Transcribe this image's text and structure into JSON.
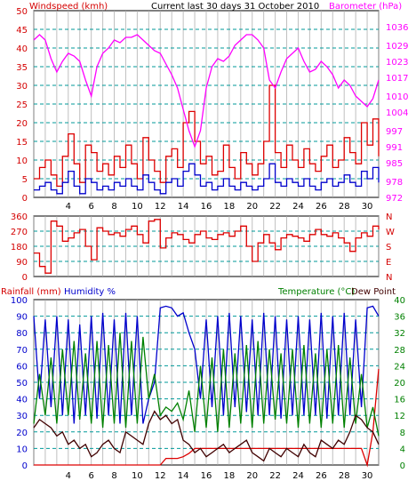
{
  "header": {
    "left": "Windspeed (kmh)",
    "center": "Current last 30 days 31 October 2010",
    "right": "Barometer (hPa)"
  },
  "lower_header": {
    "rainfall": "Rainfall (mm)",
    "humidity": "Humidity %",
    "temperature": "Temperature (°C)",
    "dewpoint": "Dew Point"
  },
  "colors": {
    "wind_axis": "#d40000",
    "baro": "#ff00ff",
    "temp_axis": "#008000",
    "humidity": "#0000cc",
    "dewpoint": "#400000",
    "grid_v": "#aaaaaa",
    "grid_h": "#009999"
  },
  "chart_data": [
    {
      "type": "line",
      "title": "Current last 30 days 31 October 2010",
      "x_ticks": [
        4,
        6,
        8,
        10,
        12,
        14,
        16,
        18,
        20,
        22,
        24,
        26,
        28,
        30
      ],
      "xlim": [
        1,
        31
      ],
      "left_axis": {
        "label": "Windspeed (kmh)",
        "ylim": [
          0,
          50
        ],
        "ticks": [
          0,
          5,
          10,
          15,
          20,
          25,
          30,
          35,
          40,
          45,
          50
        ]
      },
      "right_axis": {
        "label": "Barometer (hPa)",
        "ylim": [
          972,
          1042
        ],
        "ticks": [
          972,
          978,
          985,
          991,
          997,
          1004,
          1010,
          1017,
          1023,
          1029,
          1036
        ]
      },
      "series": [
        {
          "name": "Barometer (hPa)",
          "axis": "right",
          "x": [
            1,
            1.5,
            2,
            2.5,
            3,
            3.5,
            4,
            4.5,
            5,
            5.5,
            6,
            6.5,
            7,
            7.5,
            8,
            8.5,
            9,
            9.5,
            10,
            10.5,
            11,
            11.5,
            12,
            12.5,
            13,
            13.5,
            14,
            14.5,
            15,
            15.5,
            16,
            16.5,
            17,
            17.5,
            18,
            18.5,
            19,
            19.5,
            20,
            20.5,
            21,
            21.5,
            22,
            22.5,
            23,
            23.5,
            24,
            24.5,
            25,
            25.5,
            26,
            26.5,
            27,
            27.5,
            28,
            28.5,
            29,
            29.5,
            30,
            30.5,
            31
          ],
          "values": [
            1031,
            1033,
            1031,
            1024,
            1019,
            1023,
            1026,
            1025,
            1023,
            1016,
            1010,
            1021,
            1026,
            1028,
            1031,
            1030,
            1032,
            1032,
            1033,
            1031,
            1029,
            1027,
            1026,
            1022,
            1018,
            1013,
            1005,
            997,
            991,
            997,
            1013,
            1021,
            1024,
            1023,
            1025,
            1029,
            1031,
            1033,
            1033,
            1031,
            1028,
            1016,
            1013,
            1019,
            1024,
            1026,
            1028,
            1023,
            1019,
            1020,
            1023,
            1021,
            1018,
            1013,
            1016,
            1014,
            1010,
            1008,
            1006,
            1009,
            1016
          ]
        },
        {
          "name": "Wind gust (kmh)",
          "axis": "left",
          "x": [
            1,
            1.5,
            2,
            2.5,
            3,
            3.5,
            4,
            4.5,
            5,
            5.5,
            6,
            6.5,
            7,
            7.5,
            8,
            8.5,
            9,
            9.5,
            10,
            10.5,
            11,
            11.5,
            12,
            12.5,
            13,
            13.5,
            14,
            14.5,
            15,
            15.5,
            16,
            16.5,
            17,
            17.5,
            18,
            18.5,
            19,
            19.5,
            20,
            20.5,
            21,
            21.5,
            22,
            22.5,
            23,
            23.5,
            24,
            24.5,
            25,
            25.5,
            26,
            26.5,
            27,
            27.5,
            28,
            28.5,
            29,
            29.5,
            30,
            30.5,
            31
          ],
          "values": [
            5,
            8,
            10,
            6,
            3,
            11,
            17,
            9,
            4,
            14,
            12,
            7,
            9,
            6,
            11,
            8,
            14,
            9,
            5,
            16,
            10,
            7,
            4,
            11,
            13,
            8,
            20,
            23,
            15,
            9,
            11,
            6,
            7,
            14,
            8,
            5,
            12,
            9,
            6,
            9,
            15,
            30,
            12,
            8,
            14,
            10,
            8,
            13,
            9,
            7,
            11,
            14,
            8,
            10,
            16,
            12,
            9,
            20,
            14,
            21,
            11
          ]
        },
        {
          "name": "Average wind (kmh)",
          "axis": "left",
          "x": [
            1,
            1.5,
            2,
            2.5,
            3,
            3.5,
            4,
            4.5,
            5,
            5.5,
            6,
            6.5,
            7,
            7.5,
            8,
            8.5,
            9,
            9.5,
            10,
            10.5,
            11,
            11.5,
            12,
            12.5,
            13,
            13.5,
            14,
            14.5,
            15,
            15.5,
            16,
            16.5,
            17,
            17.5,
            18,
            18.5,
            19,
            19.5,
            20,
            20.5,
            21,
            21.5,
            22,
            22.5,
            23,
            23.5,
            24,
            24.5,
            25,
            25.5,
            26,
            26.5,
            27,
            27.5,
            28,
            28.5,
            29,
            29.5,
            30,
            30.5,
            31
          ],
          "values": [
            2,
            3,
            4,
            2,
            1,
            4,
            7,
            3,
            1,
            5,
            4,
            2,
            3,
            2,
            4,
            3,
            5,
            3,
            2,
            6,
            4,
            2,
            1,
            4,
            5,
            3,
            7,
            9,
            6,
            3,
            4,
            2,
            3,
            5,
            3,
            2,
            4,
            3,
            2,
            3,
            5,
            9,
            4,
            3,
            5,
            4,
            3,
            5,
            3,
            2,
            4,
            5,
            3,
            4,
            6,
            4,
            3,
            7,
            5,
            8,
            4
          ]
        }
      ]
    },
    {
      "type": "line",
      "left_axis": {
        "ylim": [
          0,
          360
        ],
        "ticks": [
          0,
          90,
          180,
          270,
          360
        ]
      },
      "right_axis_labels": [
        "N",
        "E",
        "S",
        "W",
        "N"
      ],
      "xlim": [
        1,
        31
      ],
      "series": [
        {
          "name": "Wind direction (°)",
          "x": [
            1,
            1.5,
            2,
            2.5,
            3,
            3.5,
            4,
            4.5,
            5,
            5.5,
            6,
            6.5,
            7,
            7.5,
            8,
            8.5,
            9,
            9.5,
            10,
            10.5,
            11,
            11.5,
            12,
            12.5,
            13,
            13.5,
            14,
            14.5,
            15,
            15.5,
            16,
            16.5,
            17,
            17.5,
            18,
            18.5,
            19,
            19.5,
            20,
            20.5,
            21,
            21.5,
            22,
            22.5,
            23,
            23.5,
            24,
            24.5,
            25,
            25.5,
            26,
            26.5,
            27,
            27.5,
            28,
            28.5,
            29,
            29.5,
            30,
            30.5,
            31
          ],
          "values": [
            140,
            60,
            20,
            330,
            300,
            210,
            230,
            260,
            280,
            180,
            100,
            290,
            270,
            250,
            260,
            240,
            280,
            300,
            250,
            200,
            330,
            340,
            170,
            230,
            260,
            250,
            220,
            200,
            250,
            270,
            230,
            220,
            250,
            260,
            240,
            270,
            300,
            180,
            90,
            200,
            250,
            200,
            160,
            230,
            250,
            240,
            230,
            210,
            250,
            280,
            250,
            240,
            260,
            230,
            200,
            150,
            230,
            260,
            240,
            300,
            280
          ]
        }
      ]
    },
    {
      "type": "line",
      "xlim": [
        1,
        31
      ],
      "left_axis": {
        "label": "Rainfall (mm) / Humidity %",
        "ylim": [
          0,
          100
        ],
        "ticks": [
          0,
          10,
          20,
          30,
          40,
          50,
          60,
          70,
          80,
          90,
          100
        ]
      },
      "right_axis": {
        "label": "Temperature (°C)",
        "ylim": [
          0,
          40
        ],
        "ticks": [
          0,
          4,
          8,
          12,
          16,
          20,
          24,
          28,
          32,
          36,
          40
        ]
      },
      "series": [
        {
          "name": "Humidity %",
          "axis": "left",
          "x": [
            1,
            1.5,
            2,
            2.5,
            3,
            3.5,
            4,
            4.5,
            5,
            5.5,
            6,
            6.5,
            7,
            7.5,
            8,
            8.5,
            9,
            9.5,
            10,
            10.5,
            11,
            11.5,
            12,
            12.5,
            13,
            13.5,
            14,
            14.5,
            15,
            15.5,
            16,
            16.5,
            17,
            17.5,
            18,
            18.5,
            19,
            19.5,
            20,
            20.5,
            21,
            21.5,
            22,
            22.5,
            23,
            23.5,
            24,
            24.5,
            25,
            25.5,
            26,
            26.5,
            27,
            27.5,
            28,
            28.5,
            29,
            29.5,
            30,
            30.5,
            31
          ],
          "values": [
            90,
            40,
            88,
            35,
            90,
            30,
            88,
            25,
            85,
            30,
            90,
            28,
            92,
            30,
            88,
            25,
            92,
            30,
            90,
            25,
            40,
            50,
            95,
            96,
            95,
            90,
            92,
            80,
            70,
            40,
            88,
            35,
            90,
            30,
            92,
            35,
            90,
            32,
            88,
            30,
            92,
            30,
            90,
            28,
            88,
            30,
            90,
            30,
            88,
            30,
            92,
            28,
            90,
            30,
            92,
            30,
            88,
            35,
            95,
            96,
            90
          ]
        },
        {
          "name": "Temperature (°C)",
          "axis": "right",
          "x": [
            1,
            1.5,
            2,
            2.5,
            3,
            3.5,
            4,
            4.5,
            5,
            5.5,
            6,
            6.5,
            7,
            7.5,
            8,
            8.5,
            9,
            9.5,
            10,
            10.5,
            11,
            11.5,
            12,
            12.5,
            13,
            13.5,
            14,
            14.5,
            15,
            15.5,
            16,
            16.5,
            17,
            17.5,
            18,
            18.5,
            19,
            19.5,
            20,
            20.5,
            21,
            21.5,
            22,
            22.5,
            23,
            23.5,
            24,
            24.5,
            25,
            25.5,
            26,
            26.5,
            27,
            27.5,
            28,
            28.5,
            29,
            29.5,
            30,
            30.5,
            31
          ],
          "values": [
            10,
            22,
            12,
            26,
            10,
            28,
            12,
            30,
            11,
            27,
            10,
            30,
            9,
            29,
            10,
            32,
            9,
            30,
            10,
            31,
            16,
            22,
            12,
            14,
            13,
            15,
            11,
            18,
            8,
            24,
            9,
            26,
            8,
            28,
            9,
            27,
            10,
            29,
            9,
            30,
            10,
            28,
            11,
            27,
            10,
            28,
            9,
            29,
            10,
            27,
            9,
            28,
            10,
            29,
            9,
            26,
            10,
            22,
            9,
            14,
            7
          ]
        },
        {
          "name": "Dew Point",
          "axis": "right",
          "x": [
            1,
            1.5,
            2,
            2.5,
            3,
            3.5,
            4,
            4.5,
            5,
            5.5,
            6,
            6.5,
            7,
            7.5,
            8,
            8.5,
            9,
            9.5,
            10,
            10.5,
            11,
            11.5,
            12,
            12.5,
            13,
            13.5,
            14,
            14.5,
            15,
            15.5,
            16,
            16.5,
            17,
            17.5,
            18,
            18.5,
            19,
            19.5,
            20,
            20.5,
            21,
            21.5,
            22,
            22.5,
            23,
            23.5,
            24,
            24.5,
            25,
            25.5,
            26,
            26.5,
            27,
            27.5,
            28,
            28.5,
            29,
            29.5,
            30,
            30.5,
            31
          ],
          "values": [
            9,
            11,
            10,
            9,
            7,
            8,
            5,
            6,
            4,
            5,
            2,
            3,
            5,
            6,
            4,
            3,
            8,
            7,
            6,
            5,
            10,
            13,
            11,
            12,
            10,
            11,
            6,
            5,
            3,
            4,
            2,
            3,
            4,
            5,
            3,
            4,
            5,
            6,
            3,
            2,
            1,
            4,
            3,
            2,
            4,
            3,
            2,
            5,
            3,
            2,
            6,
            5,
            4,
            6,
            5,
            8,
            12,
            11,
            9,
            8,
            5
          ]
        },
        {
          "name": "Rainfall (mm)",
          "axis": "left",
          "x": [
            1,
            1.5,
            2,
            2.5,
            3,
            3.5,
            4,
            4.5,
            5,
            5.5,
            6,
            6.5,
            7,
            7.5,
            8,
            8.5,
            9,
            9.5,
            10,
            10.5,
            11,
            11.5,
            12,
            12.5,
            13,
            13.5,
            14,
            14.5,
            15,
            15.5,
            16,
            16.5,
            17,
            17.5,
            18,
            18.5,
            19,
            19.5,
            20,
            20.5,
            21,
            21.5,
            22,
            22.5,
            23,
            23.5,
            24,
            24.5,
            25,
            25.5,
            26,
            26.5,
            27,
            27.5,
            28,
            28.5,
            29,
            29.5,
            30,
            30.5,
            31
          ],
          "values": [
            0,
            0,
            0,
            0,
            0,
            0,
            0,
            0,
            0,
            0,
            0,
            0,
            0,
            0,
            0,
            0,
            0,
            0,
            0,
            0,
            0,
            0,
            0,
            4,
            4,
            4,
            5,
            7,
            10,
            10,
            10,
            10,
            10,
            10,
            10,
            10,
            10,
            10,
            10,
            10,
            10,
            10,
            10,
            10,
            10,
            10,
            10,
            10,
            10,
            10,
            10,
            10,
            10,
            10,
            10,
            10,
            10,
            10,
            0,
            20,
            58
          ]
        }
      ]
    }
  ]
}
